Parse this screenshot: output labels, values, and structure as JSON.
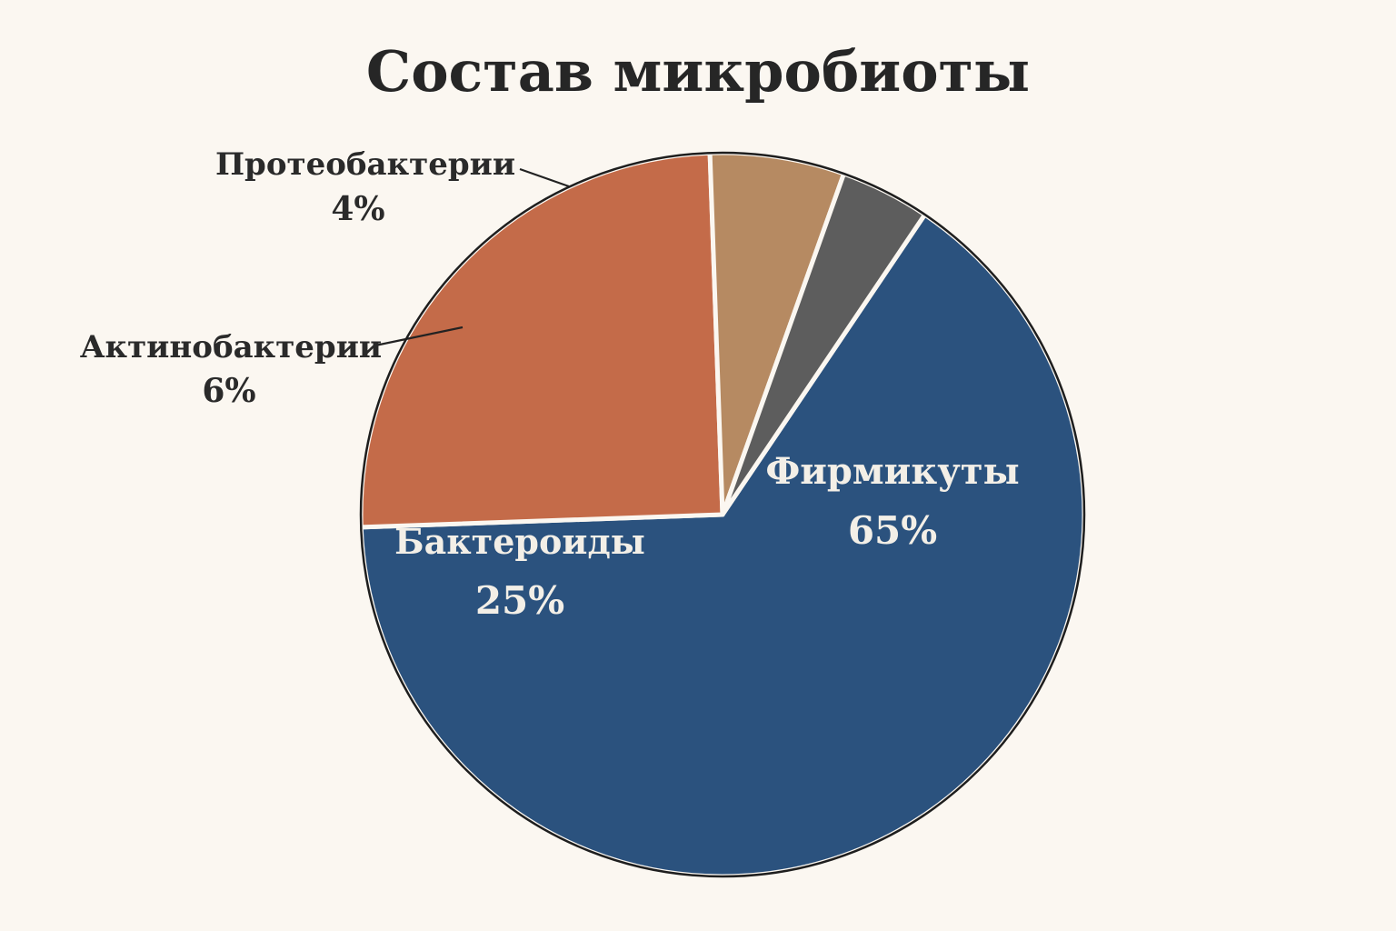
{
  "chart_data": {
    "type": "pie",
    "title": "Состав микробиоты",
    "slices": [
      {
        "name": "Фирмикуты",
        "value": 65,
        "value_label": "65%",
        "color": "#2b527e",
        "label_color": "#f3efe7",
        "label_placement": "inside"
      },
      {
        "name": "Бактероиды",
        "value": 25,
        "value_label": "25%",
        "color": "#c46b49",
        "label_color": "#f3efe7",
        "label_placement": "inside"
      },
      {
        "name": "Актинобактерии",
        "value": 6,
        "value_label": "6%",
        "color": "#b68a62",
        "label_color": "#2a2a2a",
        "label_placement": "outside"
      },
      {
        "name": "Протеобактерии",
        "value": 4,
        "value_label": "4%",
        "color": "#5d5d5d",
        "label_color": "#2a2a2a",
        "label_placement": "outside"
      }
    ],
    "legend": "none"
  },
  "colors": {
    "background": "#fbf7f1",
    "outline": "#1e1e1e",
    "separator": "#fbf7f1"
  }
}
